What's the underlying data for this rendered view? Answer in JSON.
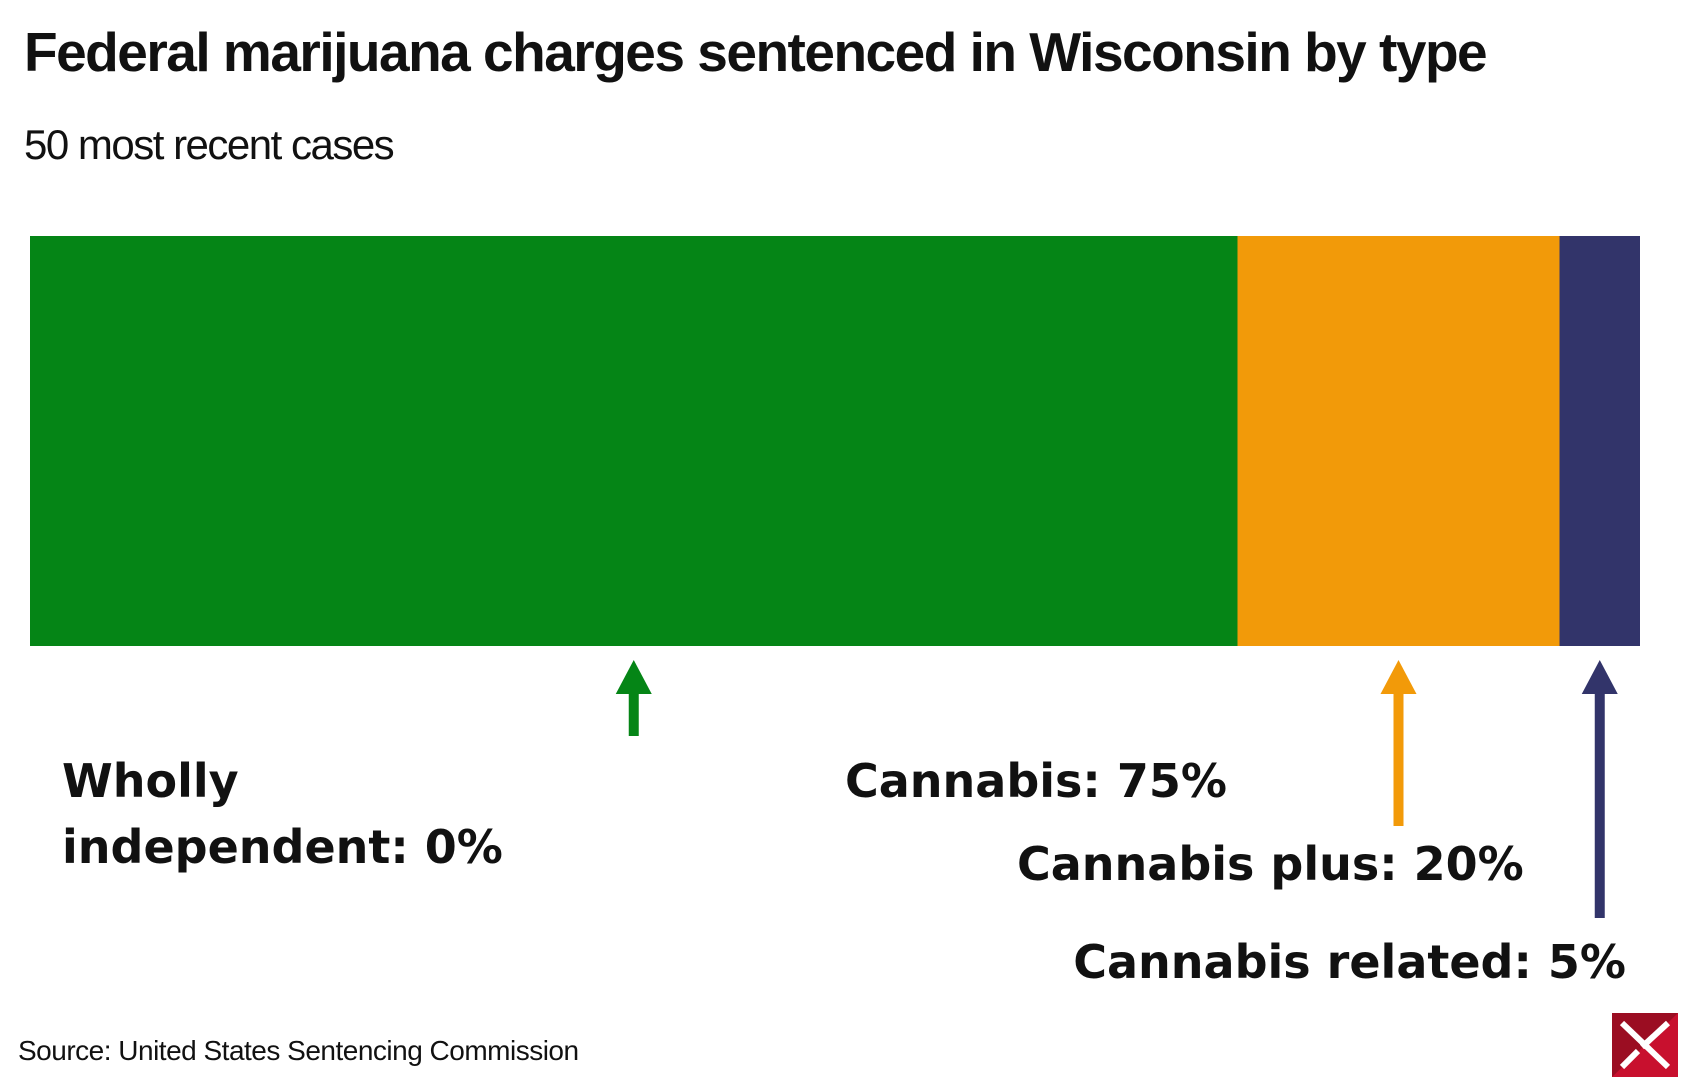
{
  "title": "Federal marijuana charges sentenced in Wisconsin by type",
  "subtitle": "50 most recent cases",
  "source": "Source: United States Sentencing Commission",
  "chart_data": {
    "type": "bar",
    "orientation": "horizontal",
    "stacked": true,
    "unit": "%",
    "series": [
      {
        "name": "Wholly independent",
        "value": 0,
        "label": "Wholly independent: 0%",
        "color": "#058516"
      },
      {
        "name": "Cannabis",
        "value": 75,
        "label": "Cannabis: 75%",
        "color": "#058516"
      },
      {
        "name": "Cannabis plus",
        "value": 20,
        "label": "Cannabis plus: 20%",
        "color": "#f29a09"
      },
      {
        "name": "Cannabis related",
        "value": 5,
        "label": "Cannabis related: 5%",
        "color": "#32346a"
      }
    ],
    "xlim": [
      0,
      100
    ],
    "grid": false,
    "legend": "none"
  },
  "logo": {
    "icon": "publisher-logo-icon",
    "color": "#c8102e"
  }
}
